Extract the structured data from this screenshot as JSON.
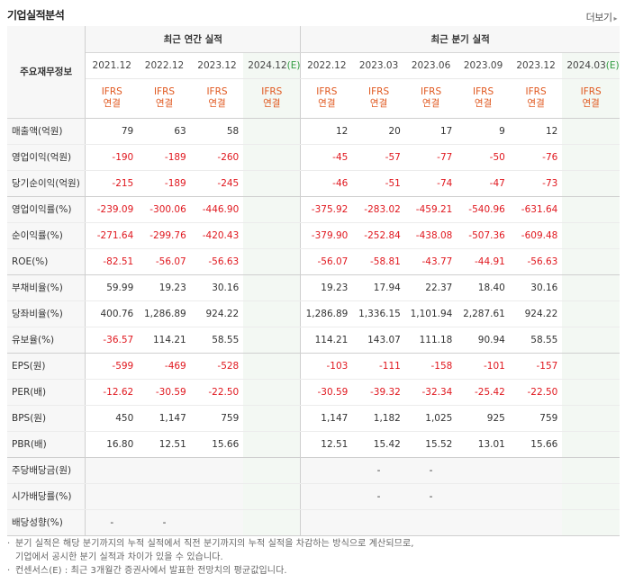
{
  "header": {
    "title": "기업실적분석",
    "more_label": "더보기"
  },
  "table": {
    "label_head": "주요재무정보",
    "group_annual": "최근 연간 실적",
    "group_quarter": "최근 분기 실적",
    "ifrs_line1": "IFRS",
    "ifrs_line2": "연결",
    "annual_periods": [
      "2021.12",
      "2022.12",
      "2023.12",
      "2024.12"
    ],
    "quarter_periods": [
      "2022.12",
      "2023.03",
      "2023.06",
      "2023.09",
      "2023.12",
      "2024.03"
    ],
    "estimate_mark": "(E)",
    "rows": [
      {
        "label": "매출액(억원)",
        "values": [
          "79",
          "63",
          "58",
          "",
          "12",
          "20",
          "17",
          "9",
          "12",
          ""
        ]
      },
      {
        "label": "영업이익(억원)",
        "values": [
          "-190",
          "-189",
          "-260",
          "",
          "-45",
          "-57",
          "-77",
          "-50",
          "-76",
          ""
        ]
      },
      {
        "label": "당기순이익(억원)",
        "values": [
          "-215",
          "-189",
          "-245",
          "",
          "-46",
          "-51",
          "-74",
          "-47",
          "-73",
          ""
        ]
      },
      {
        "label": "영업이익률(%)",
        "values": [
          "-239.09",
          "-300.06",
          "-446.90",
          "",
          "-375.92",
          "-283.02",
          "-459.21",
          "-540.96",
          "-631.64",
          ""
        ]
      },
      {
        "label": "순이익률(%)",
        "values": [
          "-271.64",
          "-299.76",
          "-420.43",
          "",
          "-379.90",
          "-252.84",
          "-438.08",
          "-507.36",
          "-609.48",
          ""
        ]
      },
      {
        "label": "ROE(%)",
        "values": [
          "-82.51",
          "-56.07",
          "-56.63",
          "",
          "-56.07",
          "-58.81",
          "-43.77",
          "-44.91",
          "-56.63",
          ""
        ]
      },
      {
        "label": "부채비율(%)",
        "values": [
          "59.99",
          "19.23",
          "30.16",
          "",
          "19.23",
          "17.94",
          "22.37",
          "18.40",
          "30.16",
          ""
        ]
      },
      {
        "label": "당좌비율(%)",
        "values": [
          "400.76",
          "1,286.89",
          "924.22",
          "",
          "1,286.89",
          "1,336.15",
          "1,101.94",
          "2,287.61",
          "924.22",
          ""
        ]
      },
      {
        "label": "유보율(%)",
        "values": [
          "-36.57",
          "114.21",
          "58.55",
          "",
          "114.21",
          "143.07",
          "111.18",
          "90.94",
          "58.55",
          ""
        ]
      },
      {
        "label": "EPS(원)",
        "values": [
          "-599",
          "-469",
          "-528",
          "",
          "-103",
          "-111",
          "-158",
          "-101",
          "-157",
          ""
        ]
      },
      {
        "label": "PER(배)",
        "values": [
          "-12.62",
          "-30.59",
          "-22.50",
          "",
          "-30.59",
          "-39.32",
          "-32.34",
          "-25.42",
          "-22.50",
          ""
        ]
      },
      {
        "label": "BPS(원)",
        "values": [
          "450",
          "1,147",
          "759",
          "",
          "1,147",
          "1,182",
          "1,025",
          "925",
          "759",
          ""
        ]
      },
      {
        "label": "PBR(배)",
        "values": [
          "16.80",
          "12.51",
          "15.66",
          "",
          "12.51",
          "15.42",
          "15.52",
          "13.01",
          "15.66",
          ""
        ]
      },
      {
        "label": "주당배당금(원)",
        "values": [
          "",
          "",
          "",
          "",
          "",
          "-",
          "-",
          "",
          "",
          ""
        ]
      },
      {
        "label": "시가배당률(%)",
        "values": [
          "",
          "",
          "",
          "",
          "",
          "-",
          "-",
          "",
          "",
          ""
        ]
      },
      {
        "label": "배당성향(%)",
        "values": [
          "-",
          "-",
          "",
          "",
          "",
          "",
          "",
          "",
          "",
          ""
        ]
      }
    ]
  },
  "notes": [
    "분기 실적은 해당 분기까지의 누적 실적에서 직전 분기까지의 누적 실적을 차감하는 방식으로 계산되므로,",
    "기업에서 공시한 분기 실적과 차이가 있을 수 있습니다.",
    "컨센서스(E) : 최근 3개월간 증권사에서 발표한 전망치의 평균값입니다."
  ],
  "colors": {
    "negative": "#e0171e",
    "ifrs": "#e0571e",
    "estimate": "#2e9a3e"
  }
}
